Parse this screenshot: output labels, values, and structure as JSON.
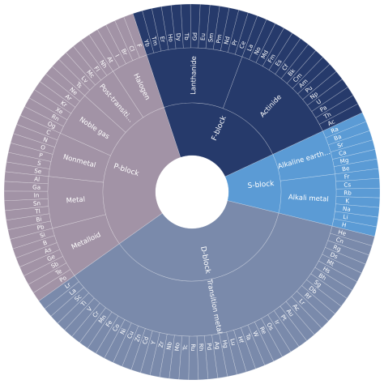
{
  "chart_data": {
    "type": "sunburst",
    "title": "",
    "colors": {
      "P-block": "#a293a6",
      "F-block": "#263a6b",
      "S-block": "#5b9bd5",
      "D-block": "#7a8aab"
    },
    "blocks": [
      {
        "name": "S-block",
        "categories": [
          {
            "name": "Alkaline earth...",
            "elements": [
              "Ra",
              "Ba",
              "Sr",
              "Ca",
              "Mg",
              "Be"
            ]
          },
          {
            "name": "Alkali metal",
            "elements": [
              "Fr",
              "Cs",
              "Rb",
              "K",
              "Na",
              "Li",
              "H"
            ]
          }
        ]
      },
      {
        "name": "D-block",
        "categories": [
          {
            "name": "Transition metal",
            "elements": [
              "He",
              "Cn",
              "Rg",
              "Ds",
              "Mt",
              "Hs",
              "Bh",
              "Sg",
              "Db",
              "Rf",
              "Lr",
              "Ac",
              "Au",
              "Pt",
              "Ir",
              "Os",
              "Re",
              "W",
              "Ta",
              "Hf",
              "Lu",
              "Hg",
              "Ag",
              "Pd",
              "Rh",
              "Ru",
              "Tc",
              "Mo",
              "Nb",
              "Zr",
              "Y",
              "Cd",
              "Zn",
              "Cu",
              "Ni",
              "Co",
              "Fe",
              "Mn",
              "Cr",
              "V",
              "Ti",
              "Sc",
              "La",
              "Lr"
            ]
          }
        ]
      },
      {
        "name": "P-block",
        "categories": [
          {
            "name": "Metalloid",
            "elements": [
              "Po",
              "Te",
              "Sb",
              "Ge",
              "As",
              "B",
              "Si"
            ]
          },
          {
            "name": "Metal",
            "elements": [
              "Pb",
              "Bi",
              "Tl",
              "Sn",
              "In",
              "Ga",
              "Al"
            ]
          },
          {
            "name": "Nonmetal",
            "elements": [
              "Se",
              "S",
              "P",
              "O",
              "N",
              "C"
            ]
          },
          {
            "name": "Noble gas",
            "elements": [
              "Og",
              "Rn",
              "Xe",
              "Kr",
              "Ar",
              "Ne"
            ]
          },
          {
            "name": "Post-transiti...",
            "elements": [
              "Ts",
              "Lv",
              "Mc",
              "Fl",
              "Nh"
            ]
          },
          {
            "name": "Halogen",
            "elements": [
              "At",
              "I",
              "Br",
              "Cl",
              "F"
            ]
          }
        ]
      },
      {
        "name": "F-block",
        "categories": [
          {
            "name": "Lanthanide",
            "elements": [
              "Yb",
              "Tm",
              "Er",
              "Ho",
              "Dy",
              "Tb",
              "Gd",
              "Eu",
              "Sm",
              "Pm",
              "Nd",
              "Pr",
              "Ce"
            ]
          },
          {
            "name": "Actinide",
            "elements": [
              "La",
              "No",
              "Md",
              "Fm",
              "Es",
              "Cf",
              "Bk",
              "Cm",
              "Am",
              "Pu",
              "Np",
              "U",
              "Pa",
              "Th",
              "Ac"
            ]
          }
        ]
      }
    ]
  }
}
